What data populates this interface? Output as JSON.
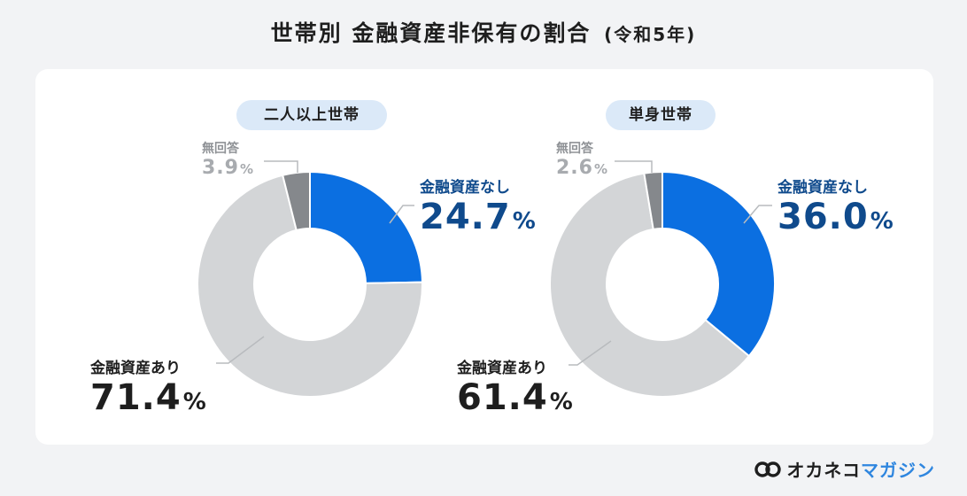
{
  "title": "世帯別 金融資産非保有の割合",
  "subtitle": "(令和5年)",
  "logo": {
    "brand_a": "オカネコ",
    "brand_b": "マガジン"
  },
  "colors": {
    "none": "#0b6fe1",
    "have": "#d3d5d7",
    "noanswer": "#85888c",
    "value_blue": "#0f4a8c",
    "pill": "#dbe9f8"
  },
  "chart_data": [
    {
      "type": "pie",
      "style": "donut",
      "title": "二人以上世帯",
      "slices": [
        {
          "label": "金融資産なし",
          "value": 24.7,
          "unit": "%"
        },
        {
          "label": "金融資産あり",
          "value": 71.4,
          "unit": "%"
        },
        {
          "label": "無回答",
          "value": 3.9,
          "unit": "%"
        }
      ]
    },
    {
      "type": "pie",
      "style": "donut",
      "title": "単身世帯",
      "slices": [
        {
          "label": "金融資産なし",
          "value": 36.0,
          "unit": "%"
        },
        {
          "label": "金融資産あり",
          "value": 61.4,
          "unit": "%"
        },
        {
          "label": "無回答",
          "value": 2.6,
          "unit": "%"
        }
      ]
    }
  ]
}
